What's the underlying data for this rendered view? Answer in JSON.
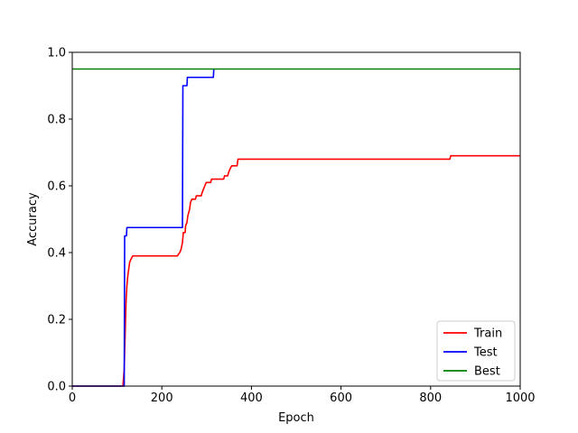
{
  "chart_data": {
    "type": "line",
    "xlabel": "Epoch",
    "ylabel": "Accuracy",
    "xlim": [
      0,
      1000
    ],
    "ylim": [
      0.0,
      1.0
    ],
    "xticks": [
      0,
      200,
      400,
      600,
      800,
      1000
    ],
    "yticks": [
      0.0,
      0.2,
      0.4,
      0.6,
      0.8,
      1.0
    ],
    "xtick_labels": [
      "0",
      "200",
      "400",
      "600",
      "800",
      "1000"
    ],
    "ytick_labels": [
      "0.0",
      "0.2",
      "0.4",
      "0.6",
      "0.8",
      "1.0"
    ],
    "grid": false,
    "legend_position": "lower-right",
    "series": [
      {
        "name": "Train",
        "color": "#ff0000",
        "points": [
          [
            0,
            0.0
          ],
          [
            113,
            0.0
          ],
          [
            116,
            0.05
          ],
          [
            118,
            0.15
          ],
          [
            120,
            0.25
          ],
          [
            122,
            0.3
          ],
          [
            124,
            0.33
          ],
          [
            126,
            0.35
          ],
          [
            128,
            0.37
          ],
          [
            131,
            0.38
          ],
          [
            135,
            0.39
          ],
          [
            235,
            0.39
          ],
          [
            237,
            0.395
          ],
          [
            240,
            0.4
          ],
          [
            243,
            0.41
          ],
          [
            246,
            0.43
          ],
          [
            248,
            0.46
          ],
          [
            252,
            0.46
          ],
          [
            253,
            0.48
          ],
          [
            256,
            0.49
          ],
          [
            258,
            0.51
          ],
          [
            260,
            0.52
          ],
          [
            262,
            0.53
          ],
          [
            264,
            0.55
          ],
          [
            267,
            0.56
          ],
          [
            275,
            0.56
          ],
          [
            277,
            0.57
          ],
          [
            288,
            0.57
          ],
          [
            290,
            0.58
          ],
          [
            293,
            0.59
          ],
          [
            296,
            0.6
          ],
          [
            299,
            0.61
          ],
          [
            309,
            0.61
          ],
          [
            311,
            0.62
          ],
          [
            338,
            0.62
          ],
          [
            340,
            0.63
          ],
          [
            347,
            0.63
          ],
          [
            349,
            0.64
          ],
          [
            352,
            0.65
          ],
          [
            356,
            0.66
          ],
          [
            368,
            0.66
          ],
          [
            370,
            0.68
          ],
          [
            843,
            0.68
          ],
          [
            845,
            0.69
          ],
          [
            1000,
            0.69
          ]
        ]
      },
      {
        "name": "Test",
        "color": "#0000ff",
        "points": [
          [
            0,
            0.0
          ],
          [
            116,
            0.0
          ],
          [
            117,
            0.45
          ],
          [
            121,
            0.45
          ],
          [
            122,
            0.475
          ],
          [
            246,
            0.475
          ],
          [
            247,
            0.9
          ],
          [
            256,
            0.9
          ],
          [
            257,
            0.925
          ],
          [
            315,
            0.925
          ],
          [
            316,
            0.95
          ]
        ]
      },
      {
        "name": "Best",
        "color": "#008000",
        "points": [
          [
            0,
            0.95
          ],
          [
            1000,
            0.95
          ]
        ]
      }
    ]
  }
}
